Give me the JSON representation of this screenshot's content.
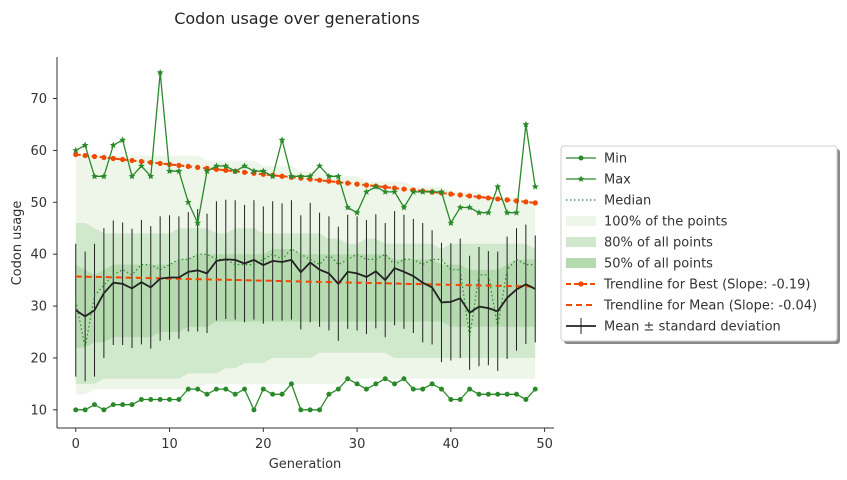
{
  "chart_data": {
    "type": "line",
    "title": "Codon usage over generations",
    "xlabel": "Generation",
    "ylabel": "Codon usage",
    "xlim": [
      -2,
      51
    ],
    "ylim": [
      6.5,
      78
    ],
    "xticks": [
      0,
      10,
      20,
      30,
      40,
      50
    ],
    "yticks": [
      10,
      20,
      30,
      40,
      50,
      60,
      70
    ],
    "grid": false,
    "legend_position": "center-right",
    "colors": {
      "green": "#2a8a2a",
      "orange": "#f04a00",
      "black": "#222222",
      "band100": "#eef6ea",
      "band80": "#d0e8cc",
      "band50": "#b6dab0"
    },
    "x": [
      0,
      1,
      2,
      3,
      4,
      5,
      6,
      7,
      8,
      9,
      10,
      11,
      12,
      13,
      14,
      15,
      16,
      17,
      18,
      19,
      20,
      21,
      22,
      23,
      24,
      25,
      26,
      27,
      28,
      29,
      30,
      31,
      32,
      33,
      34,
      35,
      36,
      37,
      38,
      39,
      40,
      41,
      42,
      43,
      44,
      45,
      46,
      47,
      48,
      49
    ],
    "series": [
      {
        "name": "Min",
        "values": [
          10,
          10,
          11,
          10,
          11,
          11,
          11,
          12,
          12,
          12,
          12,
          12,
          14,
          14,
          13,
          14,
          14,
          13,
          14,
          10,
          14,
          13,
          13,
          15,
          10,
          10,
          10,
          13,
          14,
          16,
          15,
          14,
          15,
          16,
          15,
          16,
          14,
          14,
          15,
          14,
          12,
          12,
          14,
          13,
          13,
          13,
          13,
          13,
          12,
          14
        ]
      },
      {
        "name": "Max",
        "values": [
          60,
          61,
          55,
          55,
          61,
          62,
          55,
          57,
          55,
          75,
          56,
          56,
          50,
          46,
          56,
          57,
          57,
          56,
          57,
          56,
          56,
          55,
          62,
          55,
          55,
          55,
          57,
          55,
          55,
          49,
          48,
          52,
          53,
          52,
          52,
          49,
          52,
          52,
          52,
          52,
          46,
          49,
          49,
          48,
          48,
          53,
          48,
          48,
          65,
          53
        ]
      },
      {
        "name": "Median",
        "values": [
          31,
          22,
          32,
          34,
          36,
          37,
          36,
          38,
          38,
          37,
          38,
          39,
          39,
          40,
          40,
          39,
          39,
          38,
          38,
          38,
          39,
          40,
          39,
          41,
          40,
          39,
          38,
          40,
          38,
          39,
          40,
          39,
          39,
          40,
          38,
          39,
          39,
          38,
          39,
          39,
          37,
          37,
          24,
          36,
          36,
          26,
          37,
          39,
          38,
          38
        ]
      },
      {
        "name": "Mean ± standard deviation",
        "values": [
          29.2,
          28.0,
          29.2,
          32.5,
          34.5,
          34.3,
          33.4,
          34.6,
          33.6,
          35.3,
          35.5,
          35.5,
          36.6,
          36.9,
          36.3,
          38.7,
          39.0,
          38.9,
          38.2,
          38.9,
          37.9,
          38.7,
          38.5,
          38.9,
          36.5,
          38.4,
          37.0,
          36.3,
          34.3,
          36.6,
          36.3,
          35.6,
          36.7,
          35.0,
          37.3,
          36.6,
          35.8,
          34.5,
          33.6,
          30.7,
          30.8,
          31.5,
          28.7,
          29.9,
          29.6,
          29.0,
          31.6,
          33.2,
          34.2,
          33.3
        ],
        "std": [
          12.8,
          12.5,
          12.8,
          12.5,
          12.0,
          11.8,
          11.5,
          12.0,
          11.8,
          12.0,
          12.0,
          11.8,
          11.5,
          11.8,
          11.5,
          11.5,
          11.5,
          11.5,
          11.3,
          11.5,
          11.3,
          11.5,
          11.3,
          11.5,
          11.0,
          11.5,
          11.0,
          11.0,
          11.0,
          11.0,
          11.0,
          11.0,
          11.0,
          11.0,
          11.0,
          11.0,
          11.0,
          11.5,
          11.0,
          11.5,
          11.3,
          11.5,
          11.0,
          11.5,
          11.0,
          11.5,
          11.8,
          11.8,
          11.5,
          10.3
        ]
      }
    ],
    "bands": [
      {
        "name": "100% of the points",
        "upper": [
          59,
          59,
          59,
          59,
          59,
          59,
          59,
          59,
          59,
          59,
          59,
          59,
          59,
          59,
          58,
          58,
          58,
          58,
          58,
          58,
          57,
          57,
          57,
          57,
          56,
          56,
          56,
          55,
          55,
          55,
          55,
          54,
          54,
          54,
          54,
          54,
          53,
          53,
          53,
          53,
          52,
          52,
          52,
          52,
          51,
          51,
          51,
          51,
          50,
          50
        ],
        "lower": [
          13,
          13,
          14,
          14,
          14,
          14,
          14,
          14,
          14,
          14,
          14,
          14,
          14,
          14,
          15,
          15,
          15,
          15,
          15,
          15,
          15,
          15,
          15,
          15,
          15,
          15,
          15,
          15,
          15,
          16,
          16,
          16,
          16,
          16,
          16,
          16,
          16,
          16,
          16,
          16,
          16,
          16,
          16,
          16,
          16,
          16,
          16,
          16,
          16,
          16
        ]
      },
      {
        "name": "80% of all points",
        "upper": [
          46,
          46,
          45,
          44,
          44,
          44,
          44,
          44,
          44,
          44,
          44,
          45,
          45,
          45,
          45,
          44,
          44,
          45,
          45,
          45,
          44,
          44,
          44,
          44,
          44,
          44,
          44,
          43,
          43,
          42,
          42,
          43,
          43,
          42,
          42,
          42,
          42,
          42,
          42,
          41,
          42,
          42,
          42,
          42,
          42,
          42,
          42,
          42,
          42,
          41
        ],
        "lower": [
          15,
          15,
          15,
          16,
          16,
          16,
          16,
          16,
          16,
          16,
          16,
          16,
          17,
          17,
          17,
          17,
          18,
          18,
          19,
          19,
          19,
          20,
          20,
          20,
          20,
          20,
          21,
          21,
          21,
          21,
          21,
          21,
          21,
          21,
          20,
          20,
          20,
          20,
          20,
          20,
          20,
          20,
          20,
          20,
          20,
          20,
          20,
          20,
          20,
          20
        ]
      },
      {
        "name": "50% of all points",
        "upper": [
          38,
          37,
          36,
          37,
          38,
          38,
          38,
          38,
          38,
          38,
          38,
          39,
          39,
          40,
          40,
          40,
          40,
          40,
          40,
          40,
          40,
          41,
          41,
          41,
          40,
          40,
          40,
          40,
          40,
          40,
          40,
          40,
          40,
          40,
          39,
          39,
          39,
          39,
          39,
          38,
          38,
          38,
          37,
          37,
          37,
          37,
          38,
          39,
          39,
          39
        ],
        "lower": [
          22,
          22,
          23,
          23,
          24,
          24,
          24,
          24,
          24,
          25,
          25,
          25,
          26,
          26,
          26,
          27,
          27,
          27,
          27,
          27,
          27,
          27,
          27,
          27,
          27,
          27,
          27,
          27,
          27,
          27,
          27,
          27,
          27,
          27,
          27,
          27,
          27,
          27,
          27,
          27,
          26,
          26,
          26,
          26,
          26,
          26,
          26,
          26,
          26,
          26
        ]
      }
    ],
    "trendlines": [
      {
        "name": "Trendline for Best (Slope: -0.19)",
        "start": 59.2,
        "slope": -0.19
      },
      {
        "name": "Trendline for Mean (Slope: -0.04)",
        "start": 35.7,
        "slope": -0.04
      }
    ],
    "legend": [
      "Min",
      "Max",
      "Median",
      "100% of the points",
      "80% of all points",
      "50% of all points",
      "Trendline for Best (Slope: -0.19)",
      "Trendline for Mean (Slope: -0.04)",
      "Mean ± standard deviation"
    ]
  }
}
